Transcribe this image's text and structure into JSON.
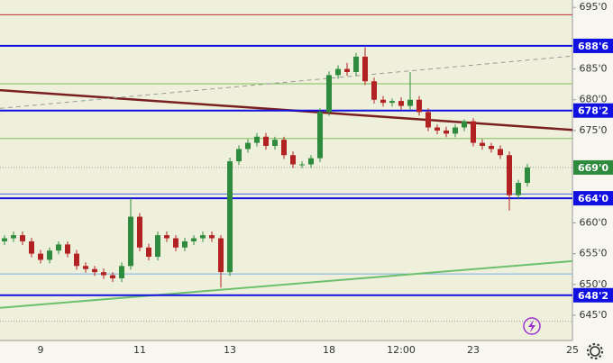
{
  "chart_data": {
    "type": "candlestick",
    "categories": [
      null,
      null,
      null,
      null,
      "9",
      null,
      null,
      null,
      null,
      null,
      null,
      null,
      null,
      null,
      null,
      "11",
      null,
      null,
      null,
      null,
      null,
      null,
      null,
      null,
      null,
      "13",
      null,
      null,
      null,
      null,
      null,
      null,
      null,
      null,
      null,
      null,
      "18",
      null,
      null,
      null,
      null,
      null,
      null,
      null,
      "12:00",
      null,
      null,
      null,
      null,
      null,
      null,
      null,
      "23",
      null,
      null,
      null,
      null,
      null,
      null,
      null,
      null,
      null,
      null,
      "25"
    ],
    "open": [
      657,
      657.5,
      658,
      657,
      655,
      654,
      655.5,
      656.5,
      655,
      653,
      652.5,
      652,
      651.5,
      651,
      653,
      661,
      656,
      654.5,
      658,
      657.5,
      656,
      657,
      657.5,
      658,
      657.5,
      652,
      670,
      672,
      673,
      674,
      672.5,
      673.5,
      671,
      669.5,
      669.5,
      670.5,
      678,
      684,
      685,
      684.5,
      687,
      683,
      680,
      679.5,
      679.8,
      679,
      680,
      678,
      675.5,
      675,
      674.5,
      675.5,
      676.5,
      673,
      672.5,
      672,
      671,
      664.5,
      666.5,
      null,
      null,
      null,
      null,
      null
    ],
    "high": [
      658,
      658.6,
      658.6,
      657.6,
      655.6,
      656,
      657,
      657,
      655.6,
      653.6,
      653,
      652.6,
      652,
      653.6,
      664,
      661.6,
      656.6,
      658.6,
      658.6,
      658,
      657.6,
      658,
      658.6,
      658.6,
      658,
      670.6,
      672.6,
      673.6,
      674.6,
      674.6,
      674,
      674,
      671.6,
      670,
      671,
      678.6,
      684.6,
      685.6,
      686,
      687.6,
      688.5,
      683.6,
      680.6,
      680.2,
      680.4,
      684.5,
      680.6,
      678.6,
      676,
      675.6,
      676,
      676.8,
      677,
      673.6,
      673,
      672.6,
      671.6,
      667,
      669.6,
      null,
      null,
      null,
      null,
      null
    ],
    "low": [
      656.4,
      656.9,
      656.4,
      654.4,
      653.4,
      653.4,
      654.9,
      654.4,
      652.4,
      651.9,
      651.4,
      650.9,
      650.4,
      650.4,
      652.4,
      655.4,
      653.9,
      653.9,
      656.9,
      655.4,
      655.4,
      656.4,
      656.9,
      656.9,
      649.5,
      651.4,
      669.4,
      671.4,
      672.4,
      671.9,
      671.9,
      670.4,
      668.9,
      668.9,
      668.9,
      669.9,
      677.4,
      683.4,
      683.9,
      683.9,
      682.4,
      679.4,
      678.9,
      678.9,
      678.4,
      678.4,
      677.4,
      674.9,
      674.4,
      673.9,
      673.9,
      674.9,
      672.4,
      671.9,
      671.4,
      670.4,
      662,
      663.9,
      665.9,
      null,
      null,
      null,
      null,
      null
    ],
    "close": [
      657.5,
      658,
      657,
      655,
      654,
      655.5,
      656.5,
      655,
      653,
      652.5,
      652,
      651.5,
      651,
      653,
      661,
      656,
      654.5,
      658,
      657.5,
      656,
      657,
      657.5,
      658,
      657.5,
      652,
      670,
      672,
      673,
      674,
      672.5,
      673.5,
      671,
      669.5,
      669.5,
      670.5,
      678,
      684,
      685,
      684.5,
      687,
      683,
      680,
      679.5,
      679.8,
      679,
      680,
      678,
      675.5,
      675,
      674.5,
      675.5,
      676.5,
      673,
      672.5,
      672,
      671,
      664.5,
      666.5,
      669,
      null,
      null,
      null,
      null,
      null
    ],
    "up_color": "#2e8b3e",
    "down_color": "#b22222",
    "ylim": [
      640.9,
      696.2
    ],
    "yticks": [
      {
        "value": 695,
        "label": "695'0"
      },
      {
        "value": 685,
        "label": "685'0"
      },
      {
        "value": 680,
        "label": "680'0"
      },
      {
        "value": 675,
        "label": "675'0"
      },
      {
        "value": 660,
        "label": "660'0"
      },
      {
        "value": 655,
        "label": "655'0"
      },
      {
        "value": 650,
        "label": "650'0"
      },
      {
        "value": 645,
        "label": "645'0"
      }
    ],
    "levels": [
      {
        "value": 688.75,
        "label": "688'6",
        "color": "#1010e0"
      },
      {
        "value": 678.25,
        "label": "678'2",
        "color": "#1010e0"
      },
      {
        "value": 664,
        "label": "664'0",
        "color": "#1010e0"
      },
      {
        "value": 648.25,
        "label": "648'2",
        "color": "#1010e0"
      }
    ],
    "last_price": {
      "value": 669,
      "label": "669'0",
      "color": "#2e8b3e"
    },
    "hlines": [
      {
        "value": 693.8,
        "color": "#c03030"
      },
      {
        "value": 682.6,
        "color": "#7cc05a"
      },
      {
        "value": 673.7,
        "color": "#7cc05a"
      },
      {
        "value": 664.7,
        "color": "#4a6ae0"
      },
      {
        "value": 651.7,
        "color": "#7ab0e0"
      }
    ],
    "dotted_lines": [
      669,
      644
    ],
    "trendlines": [
      {
        "color": "#7a1f1f",
        "width": 2.5,
        "start": [
          -0.5,
          681.55
        ],
        "end": [
          63,
          675.1
        ]
      },
      {
        "color": "#6cc06c",
        "width": 2,
        "start": [
          -0.5,
          646.2
        ],
        "end": [
          63,
          653.8
        ]
      },
      {
        "color": "#999999",
        "width": 1,
        "dashed": true,
        "start": [
          -0.5,
          678.6
        ],
        "end": [
          63,
          687.1
        ]
      }
    ]
  }
}
